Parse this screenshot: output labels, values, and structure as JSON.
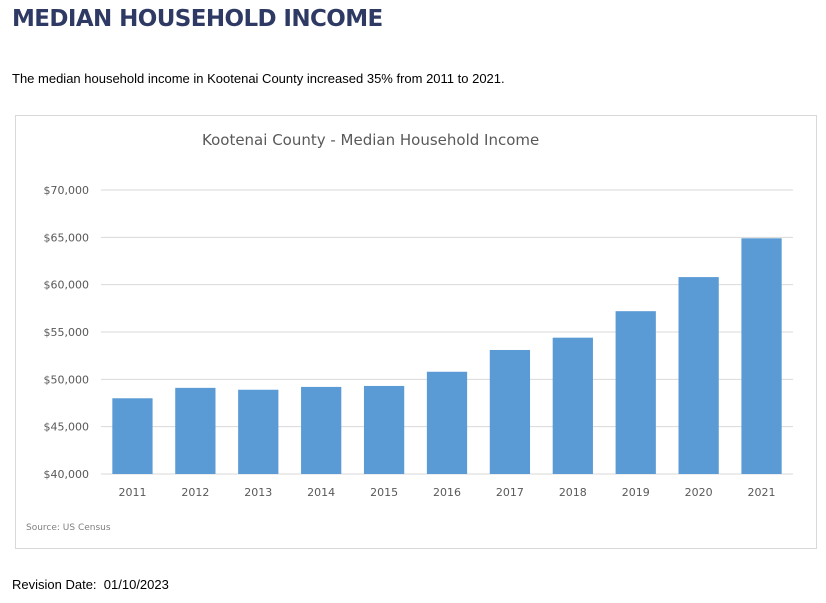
{
  "page": {
    "title": "MEDIAN HOUSEHOLD INCOME",
    "summary": "The median household income in Kootenai County increased 35% from 2011 to 2021.",
    "revision_label": "Revision Date:",
    "revision_date": "01/10/2023"
  },
  "colors": {
    "bar": "#5b9bd5",
    "grid": "#d9d9d9",
    "title": "#2e3a64"
  },
  "chart_data": {
    "type": "bar",
    "title": "Kootenai County - Median Household Income",
    "source": "Source: US Census",
    "categories": [
      "2011",
      "2012",
      "2013",
      "2014",
      "2015",
      "2016",
      "2017",
      "2018",
      "2019",
      "2020",
      "2021"
    ],
    "values": [
      48000,
      49100,
      48900,
      49200,
      49300,
      50800,
      53100,
      54400,
      57200,
      60800,
      64900
    ],
    "ylim": [
      40000,
      70000
    ],
    "yticks": [
      40000,
      45000,
      50000,
      55000,
      60000,
      65000,
      70000
    ],
    "ytick_labels": [
      "$40,000",
      "$45,000",
      "$50,000",
      "$55,000",
      "$60,000",
      "$65,000",
      "$70,000"
    ],
    "xlabel": "",
    "ylabel": "",
    "grid": true,
    "legend": "none"
  }
}
